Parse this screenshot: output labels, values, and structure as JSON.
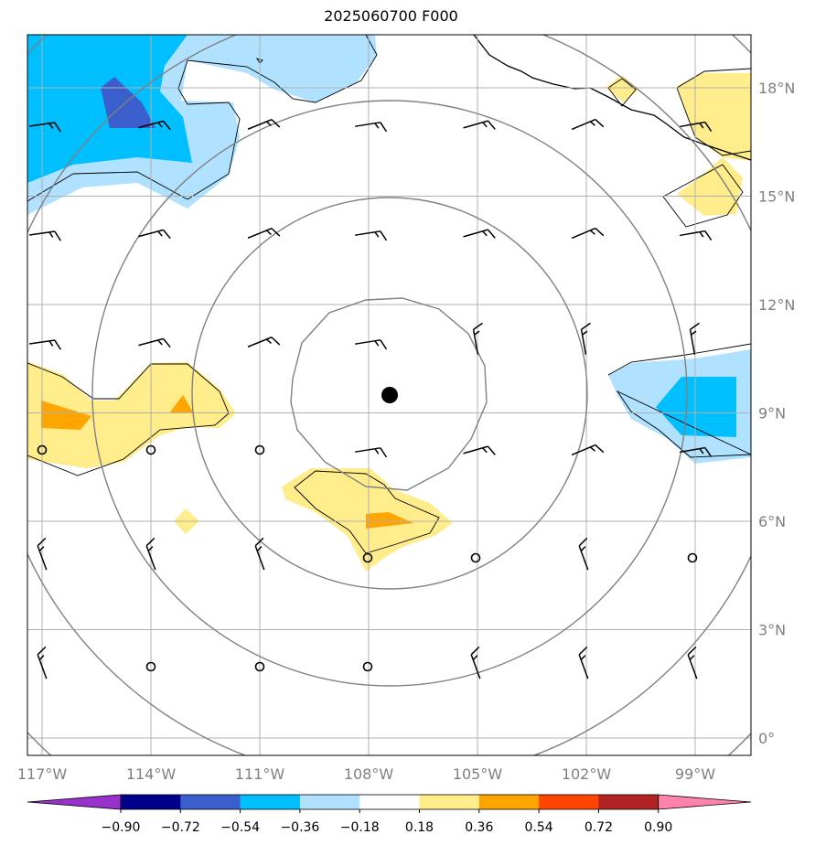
{
  "title": "2025060700 F000",
  "map": {
    "lon_labels": [
      "117°W",
      "114°W",
      "111°W",
      "108°W",
      "105°W",
      "102°W",
      "99°W"
    ],
    "lat_labels": [
      "18°N",
      "15°N",
      "12°N",
      "9°N",
      "6°N",
      "3°N",
      "0°"
    ],
    "lon_values": [
      -117,
      -114,
      -111,
      -108,
      -105,
      -102,
      -99
    ],
    "lat_values": [
      18,
      15,
      12,
      9,
      6,
      3,
      0
    ],
    "gridline_color": "#b0b0b0",
    "coast_color": "#000000",
    "range_ring_color": "#808080",
    "center_marker": "storm-center-dot"
  },
  "colorbar": {
    "tick_labels": [
      "−0.90",
      "−0.72",
      "−0.54",
      "−0.36",
      "−0.18",
      "0.18",
      "0.36",
      "0.54",
      "0.72",
      "0.90"
    ],
    "colors": [
      "#9932cc",
      "#00008b",
      "#3a5fcd",
      "#00bfff",
      "#b0e2ff",
      "#ffffff",
      "#ffec8b",
      "#ffa500",
      "#ff4500",
      "#b22222",
      "#ff82ab"
    ]
  }
}
